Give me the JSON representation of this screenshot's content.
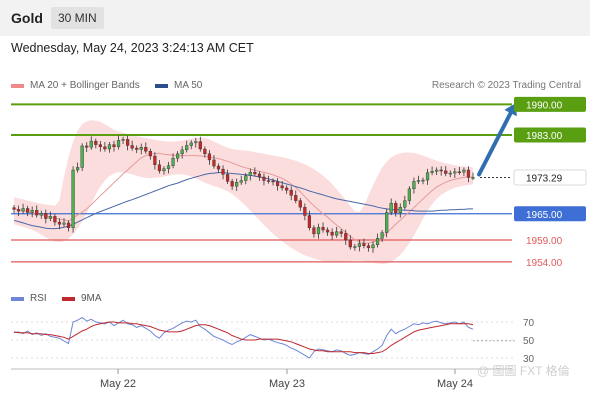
{
  "header": {
    "instrument": "Gold",
    "timeframe": "30 MIN"
  },
  "datetime": "Wednesday, May 24, 2023 3:24:13 AM CET",
  "legend": {
    "items": [
      {
        "label": "MA 20 + Bollinger Bands",
        "color": "#f08a8a"
      },
      {
        "label": "MA 50",
        "color": "#2a4f8a"
      }
    ],
    "source": "Research © 2023 Trading Central"
  },
  "rsi_legend": {
    "items": [
      {
        "label": "RSI",
        "color": "#6f86d6"
      },
      {
        "label": "9MA",
        "color": "#c0282d"
      }
    ]
  },
  "watermark": "@ 圖圖 FXT 格倫",
  "colors": {
    "resistance": "#5a9e12",
    "support": "#3e6fd6",
    "pivot": "#e05a5a",
    "bullish": "#4caf50",
    "bearish": "#c62828",
    "arrow": "#2f6fb0"
  },
  "chart_data": {
    "type": "candlestick",
    "price_axis": {
      "ylim": [
        1951,
        1991
      ]
    },
    "x_ticks": [
      "May 22",
      "May 23",
      "May 24"
    ],
    "levels": [
      {
        "label": "1990.00",
        "value": 1990.0,
        "kind": "resistance"
      },
      {
        "label": "1983.00",
        "value": 1983.0,
        "kind": "resistance"
      },
      {
        "label": "1973.29",
        "value": 1973.29,
        "kind": "current"
      },
      {
        "label": "1965.00",
        "value": 1965.0,
        "kind": "support"
      },
      {
        "label": "1959.00",
        "value": 1959.0,
        "kind": "pivot"
      },
      {
        "label": "1954.00",
        "value": 1954.0,
        "kind": "pivot"
      }
    ],
    "close": [
      1966.0,
      1965.6,
      1966.2,
      1965.3,
      1965.8,
      1964.7,
      1965.1,
      1963.9,
      1964.4,
      1963.1,
      1962.6,
      1962.9,
      1961.8,
      1975.0,
      1975.6,
      1980.5,
      1980.2,
      1981.6,
      1980.8,
      1980.3,
      1979.8,
      1980.8,
      1980.3,
      1981.8,
      1982.0,
      1980.6,
      1980.0,
      1979.7,
      1980.2,
      1979.3,
      1978.2,
      1976.2,
      1974.8,
      1975.3,
      1976.0,
      1977.7,
      1978.7,
      1979.6,
      1980.6,
      1981.2,
      1981.5,
      1979.8,
      1978.7,
      1977.3,
      1975.9,
      1975.2,
      1974.0,
      1972.4,
      1971.3,
      1972.2,
      1972.6,
      1973.7,
      1974.5,
      1974.1,
      1973.4,
      1972.6,
      1972.5,
      1972.3,
      1971.4,
      1970.9,
      1970.4,
      1969.2,
      1968.0,
      1966.5,
      1964.6,
      1961.8,
      1960.4,
      1961.9,
      1961.3,
      1960.8,
      1960.1,
      1960.9,
      1960.5,
      1959.0,
      1957.4,
      1957.5,
      1958.2,
      1957.7,
      1957.2,
      1957.9,
      1959.4,
      1960.7,
      1965.3,
      1967.4,
      1965.2,
      1966.5,
      1968.0,
      1970.7,
      1972.4,
      1972.6,
      1972.7,
      1974.4,
      1974.7,
      1975.0,
      1974.8,
      1974.2,
      1974.3,
      1974.6,
      1974.5,
      1975.0,
      1973.3,
      1973.3
    ],
    "ma50": [
      1963.5,
      1963.2,
      1962.9,
      1962.6,
      1962.3,
      1962.1,
      1961.9,
      1961.7,
      1961.6,
      1961.6,
      1961.7,
      1961.9,
      1962.2,
      1962.6,
      1963.1,
      1963.6,
      1964.1,
      1964.6,
      1965.1,
      1965.5,
      1965.9,
      1966.3,
      1966.7,
      1967.1,
      1967.5,
      1967.9,
      1968.2,
      1968.6,
      1969.0,
      1969.4,
      1969.8,
      1970.2,
      1970.6,
      1971.0,
      1971.4,
      1971.7,
      1972.0,
      1972.4,
      1972.8,
      1973.1,
      1973.4,
      1973.7,
      1974.0,
      1974.2,
      1974.3,
      1974.4,
      1974.4,
      1974.3,
      1974.2,
      1974.1,
      1974.0,
      1973.9,
      1973.8,
      1973.6,
      1973.4,
      1973.2,
      1973.0,
      1972.7,
      1972.4,
      1972.1,
      1971.8,
      1971.5,
      1971.2,
      1970.9,
      1970.6,
      1970.2,
      1969.9,
      1969.6,
      1969.3,
      1969.0,
      1968.7,
      1968.4,
      1968.2,
      1968.0,
      1967.8,
      1967.6,
      1967.4,
      1967.2,
      1967.0,
      1966.8,
      1966.5,
      1966.3,
      1966.1,
      1966.0,
      1965.9,
      1965.9,
      1965.8,
      1965.8,
      1965.7,
      1965.6,
      1965.6,
      1965.6,
      1965.6,
      1965.7,
      1965.8,
      1965.8,
      1965.9,
      1965.9,
      1966.0,
      1966.0,
      1966.1,
      1966.1
    ],
    "ma20": [
      1966.2,
      1965.9,
      1965.7,
      1965.4,
      1965.2,
      1965.0,
      1964.7,
      1964.5,
      1964.3,
      1964.0,
      1963.8,
      1963.6,
      1963.3,
      1964.0,
      1964.7,
      1965.4,
      1966.1,
      1967.1,
      1968.1,
      1969.1,
      1970.1,
      1971.1,
      1972.1,
      1973.1,
      1974.1,
      1975.0,
      1976.0,
      1976.9,
      1977.8,
      1978.3,
      1978.6,
      1978.8,
      1978.8,
      1978.6,
      1978.5,
      1978.4,
      1978.3,
      1978.3,
      1978.3,
      1978.3,
      1978.3,
      1978.2,
      1978.1,
      1978.0,
      1977.8,
      1977.6,
      1977.3,
      1977.0,
      1976.6,
      1976.2,
      1975.8,
      1975.5,
      1975.2,
      1974.9,
      1974.7,
      1974.5,
      1974.2,
      1973.9,
      1973.5,
      1973.1,
      1972.5,
      1971.8,
      1971.0,
      1970.0,
      1968.9,
      1967.8,
      1966.8,
      1965.9,
      1965.0,
      1964.2,
      1963.3,
      1962.4,
      1961.6,
      1960.7,
      1959.9,
      1959.1,
      1958.6,
      1958.3,
      1958.3,
      1958.5,
      1958.9,
      1959.6,
      1960.6,
      1961.6,
      1962.6,
      1963.5,
      1964.5,
      1965.4,
      1966.4,
      1967.4,
      1968.4,
      1969.4,
      1970.3,
      1971.1,
      1971.7,
      1972.2,
      1972.6,
      1972.9,
      1973.1,
      1973.3,
      1973.4,
      1973.4
    ],
    "bb_upper": [
      1968.8,
      1968.5,
      1968.3,
      1968.0,
      1967.8,
      1967.5,
      1967.3,
      1967.1,
      1967.0,
      1966.8,
      1968.0,
      1973.5,
      1978.0,
      1981.5,
      1984.0,
      1985.5,
      1986.1,
      1986.4,
      1986.3,
      1986.0,
      1985.5,
      1984.8,
      1984.2,
      1983.8,
      1983.5,
      1983.2,
      1982.9,
      1982.7,
      1982.5,
      1982.3,
      1982.1,
      1981.9,
      1981.7,
      1981.6,
      1981.5,
      1981.5,
      1981.6,
      1981.7,
      1981.9,
      1982.1,
      1982.3,
      1982.4,
      1982.3,
      1982.0,
      1981.5,
      1981.0,
      1980.5,
      1980.1,
      1979.8,
      1979.6,
      1979.5,
      1979.4,
      1979.3,
      1979.1,
      1978.9,
      1978.7,
      1978.5,
      1978.3,
      1978.1,
      1977.9,
      1977.7,
      1977.4,
      1977.1,
      1976.7,
      1976.3,
      1975.8,
      1975.2,
      1974.5,
      1973.7,
      1972.8,
      1971.8,
      1970.6,
      1969.4,
      1968.1,
      1966.8,
      1965.6,
      1965.4,
      1966.8,
      1969.2,
      1971.5,
      1973.7,
      1975.5,
      1976.9,
      1977.9,
      1978.5,
      1978.8,
      1979.0,
      1979.0,
      1978.9,
      1978.6,
      1978.3,
      1977.9,
      1977.5,
      1977.1,
      1976.8,
      1976.5,
      1976.3,
      1976.1,
      1975.9,
      1975.8,
      1975.7,
      1975.6
    ],
    "bb_lower": [
      1962.6,
      1962.3,
      1962.0,
      1961.7,
      1961.3,
      1960.8,
      1960.2,
      1959.6,
      1959.0,
      1958.6,
      1958.5,
      1958.7,
      1959.3,
      1960.3,
      1961.7,
      1963.3,
      1965.2,
      1967.3,
      1969.4,
      1971.2,
      1972.6,
      1973.6,
      1974.2,
      1974.5,
      1974.5,
      1974.3,
      1974.0,
      1973.7,
      1973.4,
      1973.2,
      1973.1,
      1973.2,
      1973.3,
      1973.5,
      1973.7,
      1973.9,
      1974.0,
      1974.0,
      1973.8,
      1973.5,
      1973.1,
      1972.6,
      1972.1,
      1971.7,
      1971.3,
      1971.0,
      1970.6,
      1970.1,
      1969.5,
      1968.7,
      1967.8,
      1966.8,
      1965.7,
      1964.6,
      1963.5,
      1962.4,
      1961.4,
      1960.4,
      1959.5,
      1958.7,
      1957.9,
      1957.2,
      1956.6,
      1956.0,
      1955.5,
      1955.1,
      1954.8,
      1954.5,
      1954.2,
      1954.1,
      1954.0,
      1954.0,
      1954.0,
      1954.1,
      1954.2,
      1954.3,
      1954.3,
      1954.2,
      1954.0,
      1953.8,
      1953.6,
      1953.5,
      1953.6,
      1954.0,
      1954.7,
      1955.6,
      1956.8,
      1958.3,
      1960.0,
      1961.9,
      1963.9,
      1965.7,
      1967.2,
      1968.4,
      1969.3,
      1970.0,
      1970.5,
      1970.9,
      1971.2,
      1971.4,
      1971.6,
      1971.7
    ],
    "forecast": {
      "from": 1973.29,
      "to": 1990.0
    },
    "rsi": {
      "axis_ticks": [
        70,
        50,
        30
      ],
      "rsi_values": [
        58,
        59,
        57,
        60,
        56,
        58,
        55,
        57,
        54,
        53,
        52,
        49,
        46,
        70,
        72,
        75,
        71,
        73,
        70,
        69,
        68,
        70,
        66,
        69,
        72,
        68,
        67,
        64,
        66,
        63,
        60,
        55,
        52,
        58,
        61,
        63,
        66,
        69,
        71,
        70,
        72,
        65,
        62,
        58,
        54,
        52,
        50,
        47,
        45,
        48,
        50,
        53,
        56,
        54,
        52,
        50,
        51,
        49,
        47,
        46,
        44,
        41,
        39,
        36,
        33,
        30,
        37,
        40,
        39,
        38,
        37,
        39,
        38,
        35,
        33,
        34,
        36,
        35,
        34,
        37,
        40,
        44,
        55,
        62,
        57,
        60,
        62,
        65,
        68,
        67,
        69,
        68,
        70,
        71,
        69,
        68,
        69,
        70,
        68,
        70,
        64,
        62
      ],
      "ma9_values": [
        59,
        58,
        58,
        58,
        57,
        57,
        57,
        56,
        56,
        55,
        54,
        53,
        51,
        54,
        57,
        60,
        62,
        65,
        67,
        68,
        69,
        70,
        70,
        69,
        69,
        69,
        68,
        68,
        67,
        66,
        65,
        63,
        61,
        60,
        59,
        59,
        59,
        60,
        62,
        64,
        66,
        67,
        67,
        66,
        64,
        62,
        60,
        58,
        55,
        53,
        51,
        50,
        50,
        50,
        51,
        51,
        51,
        51,
        51,
        50,
        49,
        48,
        46,
        44,
        42,
        40,
        39,
        38,
        38,
        37,
        37,
        37,
        37,
        37,
        37,
        36,
        36,
        36,
        35,
        35,
        36,
        37,
        40,
        44,
        47,
        50,
        53,
        56,
        59,
        61,
        62,
        63,
        64,
        65,
        66,
        67,
        68,
        68,
        68,
        68,
        68,
        67
      ]
    }
  }
}
